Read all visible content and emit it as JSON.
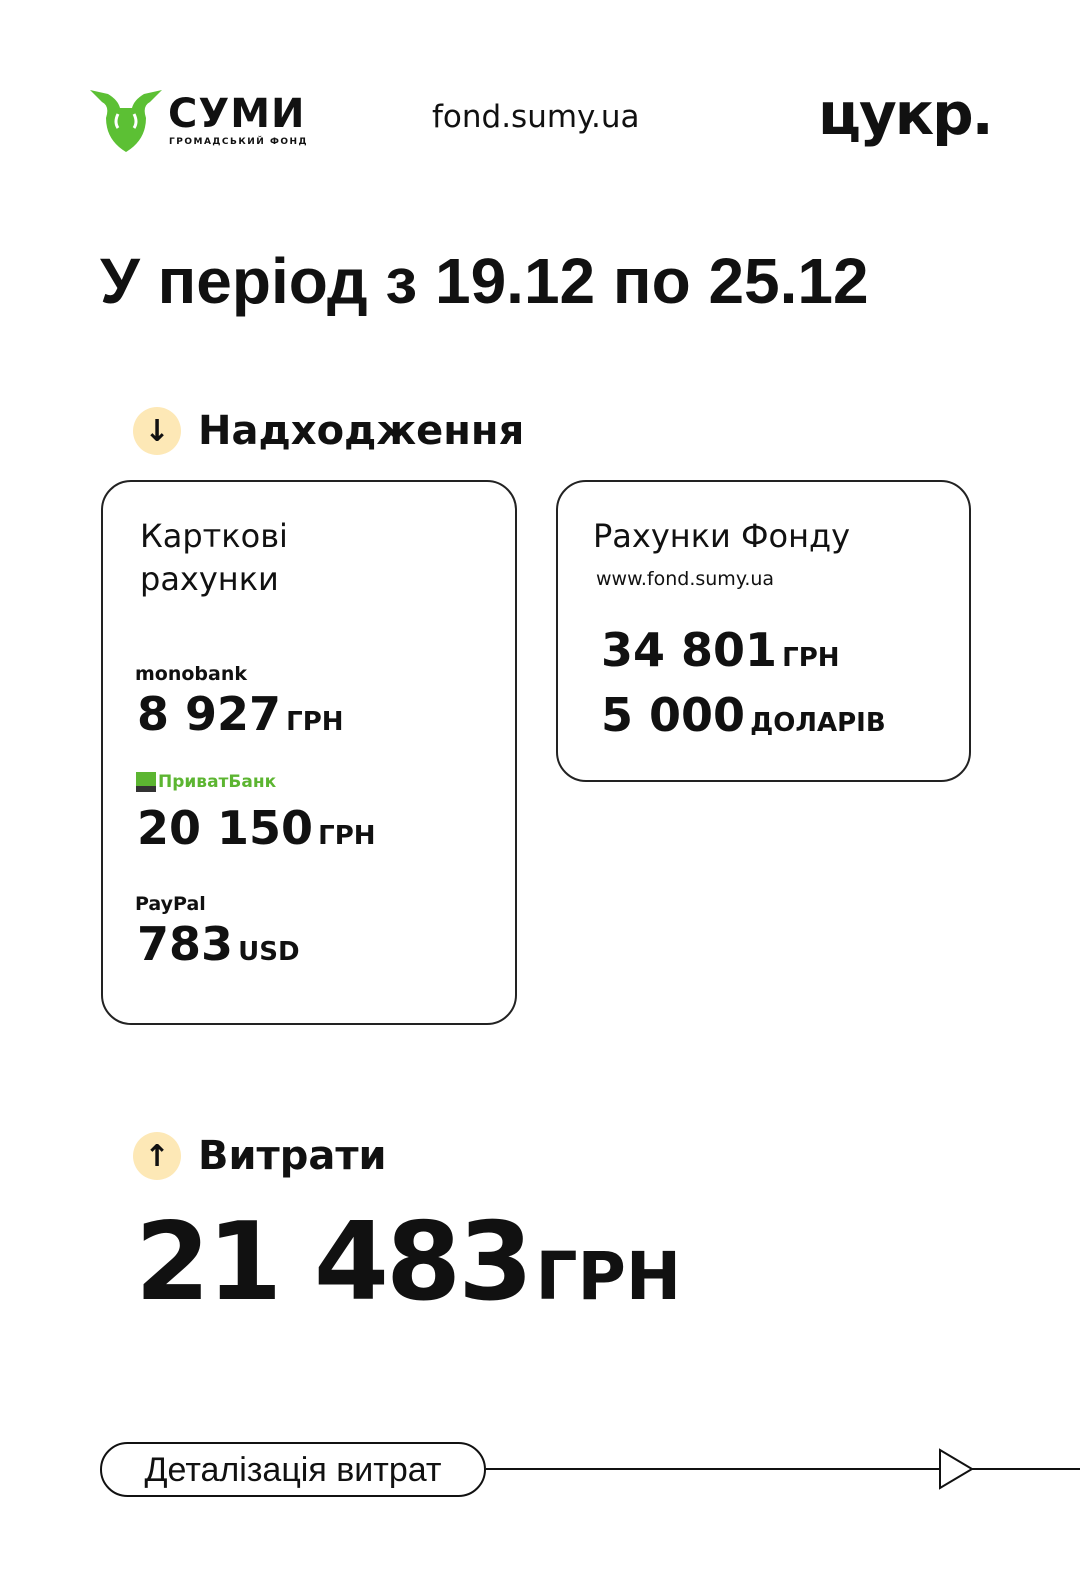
{
  "header": {
    "logo_title": "СУМИ",
    "logo_subtitle": "ГРОМАДСЬКИЙ ФОНД",
    "site": "fond.sumy.ua",
    "brand": "цукр.",
    "logo_color": "#5cc034"
  },
  "title": "У період з 19.12 по 25.12",
  "income": {
    "heading": "Надходження",
    "icon": "arrow-down-icon",
    "cards": {
      "label": "Карткові рахунки",
      "monobank": {
        "name": "monobank",
        "amount": "8 927",
        "currency": "ГРН"
      },
      "privat": {
        "name": "ПриватБанк",
        "amount": "20 150",
        "currency": "ГРН"
      },
      "paypal": {
        "name": "PayPal",
        "amount": "783",
        "currency": "USD"
      }
    },
    "fund": {
      "label": "Рахунки Фонду",
      "url": "www.fond.sumy.ua",
      "uah": {
        "amount": "34 801",
        "currency": "ГРН"
      },
      "usd": {
        "amount": "5 000",
        "currency": "ДОЛАРІВ"
      }
    }
  },
  "expenses": {
    "heading": "Витрати",
    "icon": "arrow-up-icon",
    "amount": "21 483",
    "currency": "ГРН"
  },
  "details_button": "Деталізація витрат"
}
